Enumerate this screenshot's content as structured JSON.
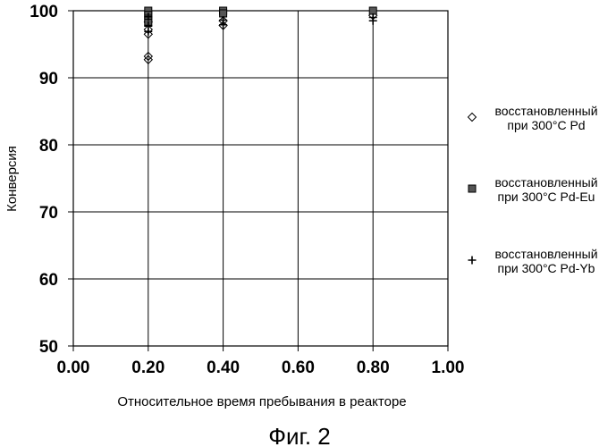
{
  "chart_data": {
    "type": "scatter",
    "title": "",
    "xlabel": "Относительное время пребывания в реакторе",
    "ylabel": "Конверсия",
    "xlim": [
      0.0,
      1.0
    ],
    "ylim": [
      50,
      100
    ],
    "x_ticks": [
      "0.00",
      "0.20",
      "0.40",
      "0.60",
      "0.80",
      "1.00"
    ],
    "y_ticks": [
      "50",
      "60",
      "70",
      "80",
      "90",
      "100"
    ],
    "grid": true,
    "legend_position": "right",
    "series": [
      {
        "name": [
          "восстановленный",
          "при 300°C Pd"
        ],
        "marker": "diamond",
        "points": [
          [
            0.2,
            93.2
          ],
          [
            0.2,
            92.7
          ],
          [
            0.2,
            96.5
          ],
          [
            0.2,
            97.2
          ],
          [
            0.2,
            98.3
          ],
          [
            0.4,
            97.8
          ],
          [
            0.4,
            98.5
          ],
          [
            0.8,
            99.3
          ]
        ]
      },
      {
        "name": [
          "восстановленный",
          "при 300°C Pd-Eu"
        ],
        "marker": "square",
        "points": [
          [
            0.2,
            100
          ],
          [
            0.2,
            99.4
          ],
          [
            0.2,
            98.8
          ],
          [
            0.2,
            98.2
          ],
          [
            0.4,
            100
          ],
          [
            0.4,
            99.6
          ],
          [
            0.8,
            100
          ]
        ]
      },
      {
        "name": [
          "восстановленный",
          "при 300°C Pd-Yb"
        ],
        "marker": "plus",
        "points": [
          [
            0.2,
            97.8
          ],
          [
            0.2,
            96.9
          ],
          [
            0.2,
            99.1
          ],
          [
            0.4,
            98.6
          ],
          [
            0.4,
            97.9
          ],
          [
            0.8,
            98.5
          ],
          [
            0.8,
            99.0
          ]
        ]
      }
    ]
  },
  "caption": "Фиг. 2"
}
